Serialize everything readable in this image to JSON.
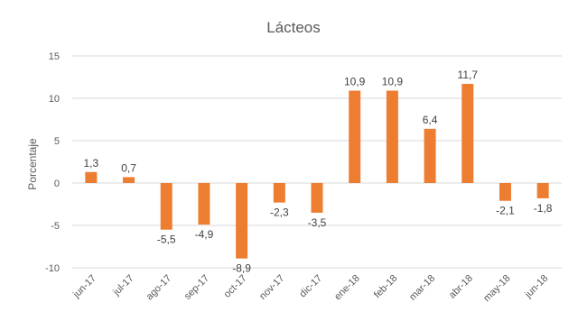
{
  "chart_data": {
    "type": "bar",
    "title": "Lácteos",
    "xlabel": "",
    "ylabel": "Porcentaje",
    "categories": [
      "jun-17",
      "jul-17",
      "ago-17",
      "sep-17",
      "oct-17",
      "nov-17",
      "dic-17",
      "ene-18",
      "feb-18",
      "mar-18",
      "abr-18",
      "may-18",
      "jun-18"
    ],
    "values": [
      1.3,
      0.7,
      -5.5,
      -4.9,
      -8.9,
      -2.3,
      -3.5,
      10.9,
      10.9,
      6.4,
      11.7,
      -2.1,
      -1.8
    ],
    "value_labels": [
      "1,3",
      "0,7",
      "-5,5",
      "-4,9",
      "-8,9",
      "-2,3",
      "-3,5",
      "10,9",
      "10,9",
      "6,4",
      "11,7",
      "-2,1",
      "-1,8"
    ],
    "ylim": [
      -10,
      15
    ],
    "yticks": [
      15,
      10,
      5,
      0,
      -5,
      -10
    ],
    "grid": true,
    "legend": "none",
    "bar_color": "#ED7D31"
  }
}
